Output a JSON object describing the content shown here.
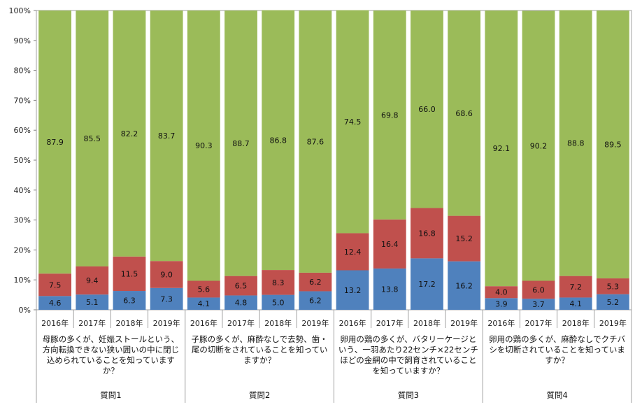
{
  "chart_data": {
    "type": "bar",
    "stacked": true,
    "ylim": [
      0,
      100
    ],
    "yticks": [
      "0%",
      "10%",
      "20%",
      "30%",
      "40%",
      "50%",
      "60%",
      "70%",
      "80%",
      "90%",
      "100%"
    ],
    "grid": false,
    "colors": [
      "#4f81bd",
      "#c0504d",
      "#9bbb59"
    ],
    "groups": [
      {
        "name": "質問1",
        "question": "母豚の多くが、妊娠ストールという、方向転換できない狭い囲いの中に閉じ込められていることを知っていますか？",
        "categories": [
          "2016年",
          "2017年",
          "2018年",
          "2019年"
        ],
        "series": [
          {
            "values": [
              4.6,
              5.1,
              6.3,
              7.3
            ]
          },
          {
            "values": [
              7.5,
              9.4,
              11.5,
              9.0
            ]
          },
          {
            "values": [
              87.9,
              85.5,
              82.2,
              83.7
            ]
          }
        ]
      },
      {
        "name": "質問2",
        "question": "子豚の多くが、麻酔なしで去勢、歯・尾の切断をされていることを知っていますか？",
        "categories": [
          "2016年",
          "2017年",
          "2018年",
          "2019年"
        ],
        "series": [
          {
            "values": [
              4.1,
              4.8,
              5.0,
              6.2
            ]
          },
          {
            "values": [
              5.6,
              6.5,
              8.3,
              6.2
            ]
          },
          {
            "values": [
              90.3,
              88.7,
              86.8,
              87.6
            ]
          }
        ]
      },
      {
        "name": "質問3",
        "question": "卵用の鶏の多くが、バタリーケージという、一羽あたり22センチ×22センチほどの金網の中で飼育されていることを知っていますか？",
        "categories": [
          "2016年",
          "2017年",
          "2018年",
          "2019年"
        ],
        "series": [
          {
            "values": [
              13.2,
              13.8,
              17.2,
              16.2
            ]
          },
          {
            "values": [
              12.4,
              16.4,
              16.8,
              15.2
            ]
          },
          {
            "values": [
              74.5,
              69.8,
              66.0,
              68.6
            ]
          }
        ]
      },
      {
        "name": "質問4",
        "question": "卵用の鶏の多くが、麻酔なしでクチバシを切断されていることを知っていますか？",
        "categories": [
          "2016年",
          "2017年",
          "2018年",
          "2019年"
        ],
        "series": [
          {
            "values": [
              3.9,
              3.7,
              4.1,
              5.2
            ]
          },
          {
            "values": [
              4.0,
              6.0,
              7.2,
              5.3
            ]
          },
          {
            "values": [
              92.1,
              90.2,
              88.8,
              89.5
            ]
          }
        ]
      }
    ]
  }
}
